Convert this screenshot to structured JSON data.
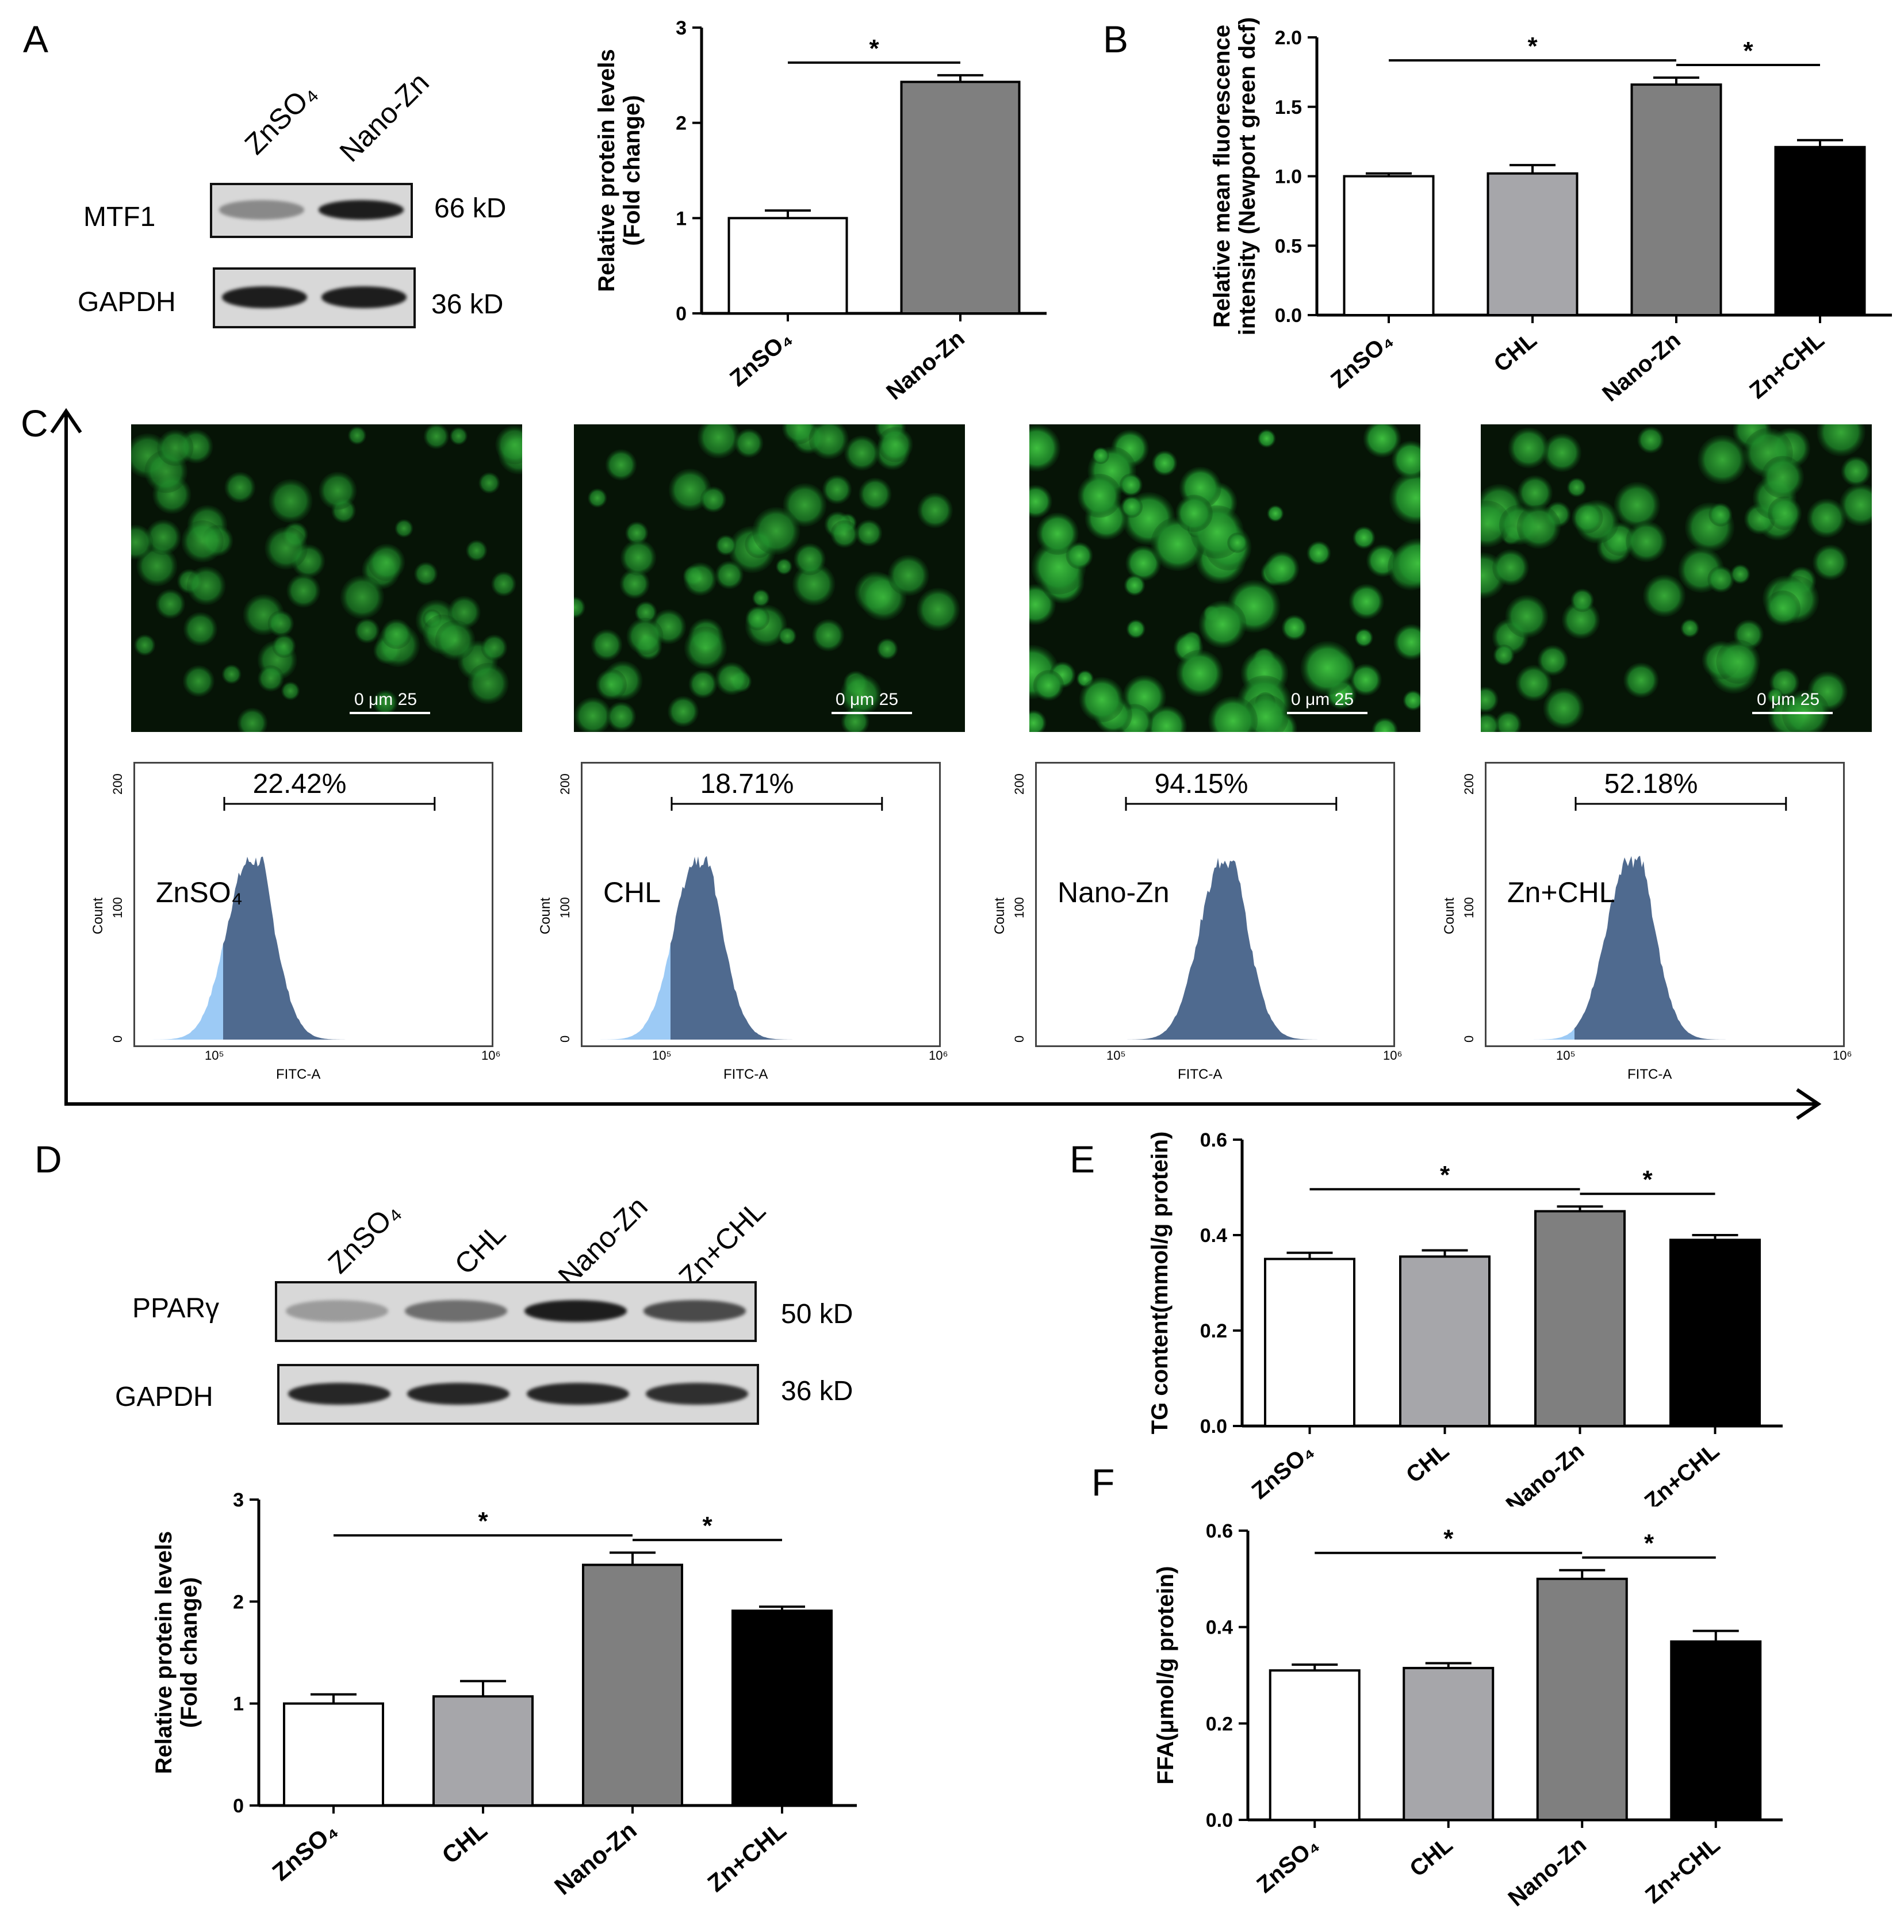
{
  "panels": {
    "A": "A",
    "B": "B",
    "C": "C",
    "D": "D",
    "E": "E",
    "F": "F"
  },
  "blot_a": {
    "lanes": [
      "ZnSO₄",
      "Nano-Zn"
    ],
    "rows": [
      {
        "label": "MTF1",
        "kd": "66 kD",
        "intensity": [
          0.35,
          0.95
        ]
      },
      {
        "label": "GAPDH",
        "kd": "36 kD",
        "intensity": [
          0.95,
          0.95
        ]
      }
    ]
  },
  "blot_d": {
    "lanes": [
      "ZnSO₄",
      "CHL",
      "Nano-Zn",
      "Zn+CHL"
    ],
    "rows": [
      {
        "label": "PPARγ",
        "kd": "50 kD",
        "intensity": [
          0.25,
          0.5,
          0.95,
          0.7
        ]
      },
      {
        "label": "GAPDH",
        "kd": "36 kD",
        "intensity": [
          0.9,
          0.9,
          0.9,
          0.85
        ]
      }
    ]
  },
  "chart_data": [
    {
      "id": "A-bar",
      "type": "bar",
      "categories": [
        "ZnSO₄",
        "Nano-Zn"
      ],
      "values": [
        1.0,
        2.43
      ],
      "errors": [
        0.08,
        0.07
      ],
      "colors": [
        "#ffffff",
        "#7f7f7f"
      ],
      "ylabel": [
        "Relative protein levels",
        "(Fold change)"
      ],
      "ylim": [
        0,
        3
      ],
      "yticks": [
        "0",
        "1",
        "2",
        "3"
      ],
      "significance": [
        {
          "from": 0,
          "to": 1,
          "label": "*"
        }
      ]
    },
    {
      "id": "B-bar",
      "type": "bar",
      "categories": [
        "ZnSO₄",
        "CHL",
        "Nano-Zn",
        "Zn+CHL"
      ],
      "values": [
        1.0,
        1.02,
        1.66,
        1.21
      ],
      "errors": [
        0.02,
        0.06,
        0.05,
        0.05
      ],
      "colors": [
        "#ffffff",
        "#a6a6aa",
        "#7f7f7f",
        "#000000"
      ],
      "ylabel": [
        "Relative mean fluorescence",
        "intensity (Newport green dcf)"
      ],
      "ylim": [
        0,
        2.0
      ],
      "yticks": [
        "0.0",
        "0.5",
        "1.0",
        "1.5",
        "2.0"
      ],
      "significance": [
        {
          "from": 0,
          "to": 2,
          "label": "*"
        },
        {
          "from": 2,
          "to": 3,
          "label": "*"
        }
      ]
    },
    {
      "id": "D-bar",
      "type": "bar",
      "categories": [
        "ZnSO₄",
        "CHL",
        "Nano-Zn",
        "Zn+CHL"
      ],
      "values": [
        1.0,
        1.07,
        2.36,
        1.91
      ],
      "errors": [
        0.09,
        0.15,
        0.12,
        0.04
      ],
      "colors": [
        "#ffffff",
        "#a6a6aa",
        "#7f7f7f",
        "#000000"
      ],
      "ylabel": [
        "Relative protein levels",
        "(Fold change)"
      ],
      "ylim": [
        0,
        3
      ],
      "yticks": [
        "0",
        "1",
        "2",
        "3"
      ],
      "significance": [
        {
          "from": 0,
          "to": 2,
          "label": "*"
        },
        {
          "from": 2,
          "to": 3,
          "label": "*"
        }
      ]
    },
    {
      "id": "E-bar",
      "type": "bar",
      "categories": [
        "ZnSO₄",
        "CHL",
        "Nano-Zn",
        "Zn+CHL"
      ],
      "values": [
        0.35,
        0.355,
        0.45,
        0.39
      ],
      "errors": [
        0.013,
        0.013,
        0.01,
        0.01
      ],
      "colors": [
        "#ffffff",
        "#a6a6aa",
        "#7f7f7f",
        "#000000"
      ],
      "ylabel": [
        "TG content(mmol/g protein)"
      ],
      "ylim": [
        0,
        0.6
      ],
      "yticks": [
        "0.0",
        "0.2",
        "0.4",
        "0.6"
      ],
      "significance": [
        {
          "from": 0,
          "to": 2,
          "label": "*"
        },
        {
          "from": 2,
          "to": 3,
          "label": "*"
        }
      ]
    },
    {
      "id": "F-bar",
      "type": "bar",
      "categories": [
        "ZnSO₄",
        "CHL",
        "Nano-Zn",
        "Zn+CHL"
      ],
      "values": [
        0.31,
        0.315,
        0.5,
        0.37
      ],
      "errors": [
        0.012,
        0.01,
        0.018,
        0.022
      ],
      "colors": [
        "#ffffff",
        "#a6a6aa",
        "#7f7f7f",
        "#000000"
      ],
      "ylabel": [
        "FFA(μmol/g protein)"
      ],
      "ylim": [
        0,
        0.6
      ],
      "yticks": [
        "0.0",
        "0.2",
        "0.4",
        "0.6"
      ],
      "significance": [
        {
          "from": 0,
          "to": 2,
          "label": "*"
        },
        {
          "from": 2,
          "to": 3,
          "label": "*"
        }
      ]
    }
  ],
  "micrographs": [
    {
      "scale_label": "0  μm  25",
      "density": 0.45
    },
    {
      "scale_label": "0  μm  25",
      "density": 0.6
    },
    {
      "scale_label": "0  μm  25",
      "density": 1.0
    },
    {
      "scale_label": "0  μm  25",
      "density": 0.7
    }
  ],
  "flow": {
    "xlabel": "FITC-A",
    "ylabel": "Count",
    "xticks": [
      "10⁵",
      "10⁶"
    ],
    "yticks": [
      "0",
      "100",
      "200"
    ],
    "panels": [
      {
        "name": "ZnSO₄",
        "percent": "22.42%",
        "peak": 0.32,
        "light": "#9ccaf5",
        "dark": "#4f6a8f"
      },
      {
        "name": "CHL",
        "percent": "18.71%",
        "peak": 0.32,
        "light": "#9ccaf5",
        "dark": "#4f6a8f"
      },
      {
        "name": "Nano-Zn",
        "percent": "94.15%",
        "peak": 0.52,
        "light": "#9ccaf5",
        "dark": "#4f6a8f"
      },
      {
        "name": "Zn+CHL",
        "percent": "52.18%",
        "peak": 0.4,
        "light": "#9ccaf5",
        "dark": "#4f6a8f"
      }
    ]
  }
}
